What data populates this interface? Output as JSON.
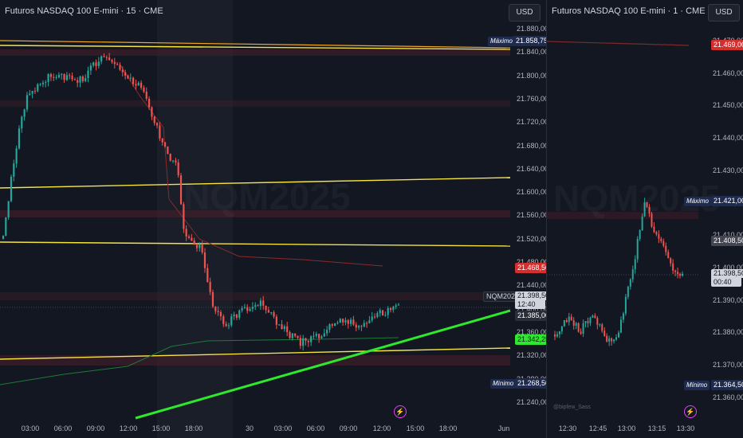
{
  "left_chart": {
    "title": "Futuros NASDAQ 100 E-mini · 15 · CME",
    "currency": "USD",
    "watermark": "NQM2025",
    "price_axis": [
      "21.880,00",
      "21.840,00",
      "21.800,00",
      "21.760,00",
      "21.720,00",
      "21.680,00",
      "21.640,00",
      "21.600,00",
      "21.560,00",
      "21.520,00",
      "21.480,00",
      "21.440,00",
      "21.400,00",
      "21.360,00",
      "21.320,00",
      "21.280,00",
      "21.240,00"
    ],
    "time_axis": [
      "03:00",
      "06:00",
      "09:00",
      "12:00",
      "15:00",
      "18:00",
      "30",
      "03:00",
      "06:00",
      "09:00",
      "12:00",
      "15:00",
      "18:00",
      "Jun"
    ],
    "high_label": "Máximo",
    "high_value": "21.858,75",
    "low_label": "Mínimo",
    "low_value": "21.268,50",
    "red_tag": "21.468,50",
    "symbol_tag": "NQM2025",
    "last_price": "21.398,50",
    "countdown": "12:40",
    "dark_tag": "21.385,00",
    "green_tag": "21.342,25",
    "colors": {
      "up": "#26a69a",
      "down": "#ef5350",
      "yellow": "#f5e342",
      "orange": "#f5a623",
      "green_line": "#2ee82e",
      "background": "#131722"
    }
  },
  "right_chart": {
    "title": "Futuros NASDAQ 100 E-mini · 1 · CME",
    "currency": "USD",
    "watermark": "NQM2025",
    "price_axis": [
      "21.470,00",
      "21.460,00",
      "21.450,00",
      "21.440,00",
      "21.430,00",
      "21.420,00",
      "21.410,00",
      "21.400,00",
      "21.390,00",
      "21.380,00",
      "21.370,00",
      "21.360,00"
    ],
    "time_axis": [
      "12:30",
      "12:45",
      "13:00",
      "13:15",
      "13:30"
    ],
    "red_tag": "21.469,00",
    "high_label": "Máximo",
    "high_value": "21.421,00",
    "gray_tag": "21.408,50",
    "last_price": "21.398,50",
    "countdown": "00:40",
    "low_label": "Mínimo",
    "low_value": "21.364,50",
    "author_watermark": "@bipfew_Sass"
  },
  "icons": {
    "left_alert": "lightning-icon",
    "right_alert": "lightning-icon"
  }
}
